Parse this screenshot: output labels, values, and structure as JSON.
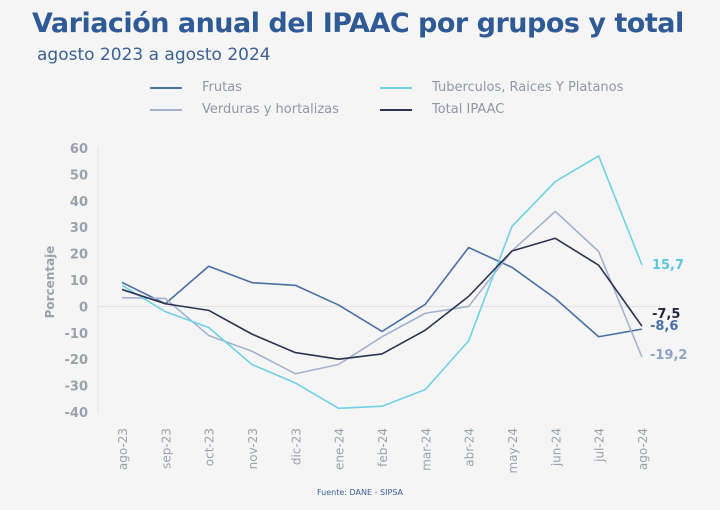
{
  "chart_data": {
    "type": "line",
    "title": "Variación anual del IPAAC por grupos y total",
    "subtitle": "agosto 2023 a agosto 2024",
    "xlabel": "",
    "ylabel": "Porcentaje",
    "ylim": [
      -40,
      60
    ],
    "yticks": [
      60,
      50,
      40,
      30,
      20,
      10,
      0,
      -10,
      -20,
      -30,
      -40
    ],
    "categories": [
      "ago-23",
      "sep-23",
      "oct-23",
      "nov-23",
      "dic-23",
      "ene-24",
      "feb-24",
      "mar-24",
      "abr-24",
      "may-24",
      "jun-24",
      "jul-24",
      "ago-24"
    ],
    "legend_position": "top",
    "series": [
      {
        "name": "Frutas",
        "color": "#4a6fa5",
        "label_color": "#4a6fa5",
        "end_label": "-8,6",
        "values": [
          9.1,
          1.0,
          15.2,
          9.0,
          8.0,
          0.5,
          -9.5,
          0.8,
          22.3,
          14.8,
          3.0,
          -11.5,
          -8.6
        ]
      },
      {
        "name": "Verduras y hortalizas",
        "color": "#a3b3cf",
        "label_color": "#8fa3c6",
        "end_label": "-19,2",
        "values": [
          3.3,
          3.0,
          -11.0,
          -17.0,
          -25.5,
          -22.0,
          -11.5,
          -2.6,
          0.0,
          21.0,
          36.0,
          20.8,
          -19.2
        ]
      },
      {
        "name": "Tuberculos, Raices Y Platanos",
        "color": "#6fd0e6",
        "label_color": "#5bc8e0",
        "end_label": "15,7",
        "values": [
          8.0,
          -2.0,
          -8.0,
          -22.0,
          -29.0,
          -38.6,
          -37.8,
          -31.5,
          -13.0,
          30.3,
          47.3,
          57.0,
          15.7
        ]
      },
      {
        "name": "Total IPAAC",
        "color": "#2b3350",
        "label_color": "#1f2740",
        "end_label": "-7,5",
        "values": [
          6.4,
          1.0,
          -1.5,
          -10.5,
          -17.5,
          -20.0,
          -18.0,
          -9.0,
          3.8,
          21.0,
          25.8,
          15.6,
          -7.5
        ]
      }
    ],
    "source": "Fuente: DANE - SIPSA"
  }
}
